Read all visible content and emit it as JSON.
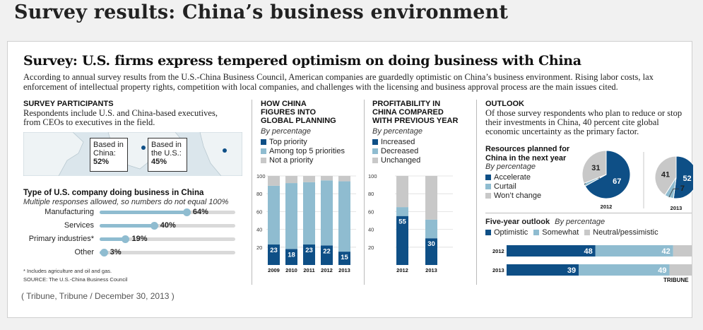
{
  "page_title": "Survey results: China’s business environment",
  "graphic_title": "Survey: U.S. firms express tempered optimism on doing business with China",
  "intro": "According to annual survey results from the U.S.-China Business Council, American companies are guardedly optimistic on China’s business environment. Rising labor costs, lax enforcement of intellectual property rights, competition with local companies, and challenges with the licensing and business approval process are the main issues cited.",
  "participants": {
    "title": "SURVEY PARTICIPANTS",
    "body": "Respondents include U.S. and China-based executives, from CEOs to executives in the field.",
    "china_label": "Based in China:",
    "china_value": "52%",
    "us_label": "Based in the U.S.:",
    "us_value": "45%"
  },
  "company_type": {
    "title": "Type of U.S. company doing business in China",
    "note": "Multiple responses allowed, so numbers do not equal 100%",
    "footnote": "* Includes agriculture and oil and gas.",
    "source": "SOURCE: The U.S.-China Business Council"
  },
  "planning": {
    "title_line1": "HOW CHINA",
    "title_line2": "FIGURES INTO",
    "title_line3": "GLOBAL PLANNING",
    "by": "By percentage"
  },
  "profitability": {
    "title_line1": "PROFITABILITY IN",
    "title_line2": "CHINA COMPARED",
    "title_line3": "WITH PREVIOUS YEAR",
    "by": "By percentage"
  },
  "outlook": {
    "title": "OUTLOOK",
    "body": "Of those survey respondents who plan to reduce or stop their investments in China, 40 percent cite global economic uncertainty as the primary factor.",
    "resources_title_line1": "Resources planned for",
    "resources_title_line2": "China in the next year",
    "resources_by": "By percentage",
    "five_year_title": "Five-year outlook",
    "five_year_by": "By percentage"
  },
  "brand": "TRIBUNE",
  "credit": "( Tribune, Tribune / December 30, 2013 )",
  "colors": {
    "dark_blue": "#0e4f86",
    "light_blue": "#8fbcd0",
    "gray": "#c8c8c8"
  },
  "chart_data": [
    {
      "id": "company_type",
      "type": "bar",
      "orientation": "horizontal",
      "categories": [
        "Manufacturing",
        "Services",
        "Primary industries*",
        "Other"
      ],
      "values": [
        64,
        40,
        19,
        3
      ],
      "value_labels": [
        "64%",
        "40%",
        "19%",
        "3%"
      ],
      "ylim": [
        0,
        100
      ]
    },
    {
      "id": "global_planning",
      "type": "bar",
      "stacked": true,
      "categories": [
        "2009",
        "2010",
        "2011",
        "2012",
        "2013"
      ],
      "series": [
        {
          "name": "Top priority",
          "values": [
            23,
            18,
            23,
            22,
            15
          ],
          "color": "#0e4f86"
        },
        {
          "name": "Among top 5 priorities",
          "values": [
            66,
            74,
            70,
            73,
            79
          ],
          "color": "#8fbcd0"
        },
        {
          "name": "Not a priority",
          "values": [
            11,
            8,
            7,
            5,
            6
          ],
          "color": "#c8c8c8"
        }
      ],
      "ylim": [
        0,
        100
      ],
      "yticks": [
        20,
        40,
        60,
        80,
        100
      ]
    },
    {
      "id": "profitability",
      "type": "bar",
      "stacked": true,
      "categories": [
        "2012",
        "2013"
      ],
      "series": [
        {
          "name": "Increased",
          "values": [
            55,
            30
          ],
          "color": "#0e4f86"
        },
        {
          "name": "Decreased",
          "values": [
            10,
            21
          ],
          "color": "#8fbcd0"
        },
        {
          "name": "Unchanged",
          "values": [
            35,
            49
          ],
          "color": "#c8c8c8"
        }
      ],
      "ylim": [
        0,
        100
      ],
      "yticks": [
        20,
        40,
        60,
        80,
        100
      ]
    },
    {
      "id": "resources",
      "type": "pie",
      "legend": [
        "Accelerate",
        "Curtail",
        "Won’t change"
      ],
      "colors": [
        "#0e4f86",
        "#8fbcd0",
        "#c8c8c8"
      ],
      "pies": [
        {
          "label": "2012",
          "values": [
            67,
            2,
            31
          ]
        },
        {
          "label": "2013",
          "values": [
            52,
            7,
            41
          ]
        }
      ]
    },
    {
      "id": "five_year_outlook",
      "type": "bar",
      "orientation": "horizontal",
      "stacked": true,
      "categories": [
        "2012",
        "2013"
      ],
      "series": [
        {
          "name": "Optimistic",
          "values": [
            48,
            39
          ],
          "color": "#0e4f86"
        },
        {
          "name": "Somewhat",
          "values": [
            42,
            49
          ],
          "color": "#8fbcd0"
        },
        {
          "name": "Neutral/pessimistic",
          "values": [
            10,
            12
          ],
          "color": "#c8c8c8"
        }
      ],
      "xlim": [
        0,
        100
      ]
    }
  ]
}
